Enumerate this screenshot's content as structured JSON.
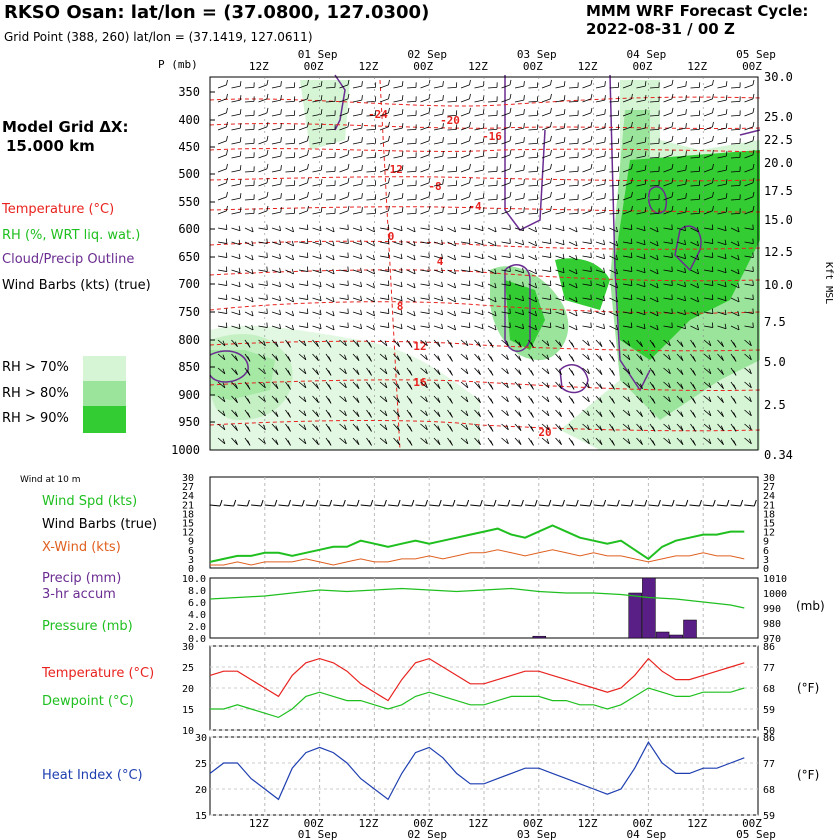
{
  "header": {
    "title": "RKSO Osan:  lat/lon = (37.0800, 127.0300)",
    "subtitle": "Grid Point (388, 260) lat/lon = (37.1419, 127.0611)",
    "cycle_line1": "MMM WRF Forecast Cycle:",
    "cycle_line2": "2022-08-31 / 00  Z"
  },
  "model": {
    "line1": "Model Grid ΔX:",
    "line2": "15.000 km"
  },
  "colors": {
    "temp": "#e8231f",
    "rh": "#1fbf1f",
    "cloud": "#6a2c91",
    "rh70": "#d5f5d5",
    "rh80": "#9be49b",
    "rh90": "#33cc33",
    "heat": "#1f3fb0"
  },
  "legend": {
    "temp": "Temperature (°C)",
    "rh": "RH (%, WRT liq. wat.)",
    "cloud": "Cloud/Precip Outline",
    "barbs": "Wind Barbs (kts) (true)",
    "rh70": "RH > 70%",
    "rh80": "RH > 80%",
    "rh90": "RH > 90%"
  },
  "time_axis": {
    "dates": [
      "01 Sep",
      "02 Sep",
      "03 Sep",
      "04 Sep",
      "05 Sep"
    ],
    "hour_labels": [
      "12Z",
      "00Z",
      "12Z",
      "00Z",
      "12Z",
      "00Z",
      "12Z",
      "00Z",
      "12Z",
      "00Z"
    ]
  },
  "upper": {
    "p_label": "P (mb)",
    "pressure_ticks": [
      "350",
      "400",
      "450",
      "500",
      "550",
      "600",
      "650",
      "700",
      "750",
      "800",
      "850",
      "900",
      "950",
      "1000"
    ],
    "height_ticks": [
      "30.0",
      "25.0",
      "22.5",
      "20.0",
      "17.5",
      "15.0",
      "12.5",
      "10.0",
      "7.5",
      "5.0",
      "2.5",
      "0.34"
    ],
    "height_label": "Kft MSL",
    "temp_labels": [
      "-24",
      "-20",
      "-16",
      "-12",
      "-8",
      "-4",
      "0",
      "4",
      "8",
      "12",
      "16",
      "20"
    ]
  },
  "surface": {
    "label": "Wind at 10 m",
    "y_ticks": [
      "30",
      "27",
      "24",
      "21",
      "18",
      "15",
      "12",
      "9",
      "6",
      "3",
      "0"
    ],
    "legend": {
      "wspd": "Wind Spd (kts)",
      "barbs": "Wind Barbs (true)",
      "xwind": "X-Wind (kts)"
    }
  },
  "precip_panel": {
    "left_ticks": [
      "10.0",
      "8.0",
      "6.0",
      "4.0",
      "2.0",
      "0.0"
    ],
    "right_ticks": [
      "1010",
      "1000",
      "990",
      "980",
      "970"
    ],
    "legend": {
      "precip": "Precip (mm)",
      "accum": "3-hr accum",
      "pressure": "Pressure (mb)"
    },
    "unit": "(mb)"
  },
  "temp_panel": {
    "left_ticks": [
      "30",
      "25",
      "20",
      "15",
      "10"
    ],
    "right_ticks": [
      "86",
      "77",
      "68",
      "59",
      "50"
    ],
    "legend": {
      "temp": "Temperature (°C)",
      "dew": "Dewpoint (°C)"
    },
    "unit": "(°F)"
  },
  "heat_panel": {
    "left_ticks": [
      "30",
      "25",
      "20",
      "15"
    ],
    "right_ticks": [
      "86",
      "77",
      "68",
      "59"
    ],
    "legend": "Heat Index (°C)",
    "unit": "(°F)"
  },
  "chart_data": [
    {
      "type": "line",
      "title": "Wind at 10 m",
      "x_hours": [
        0,
        3,
        6,
        9,
        12,
        15,
        18,
        21,
        24,
        27,
        30,
        33,
        36,
        39,
        42,
        45,
        48,
        51,
        54,
        57,
        60,
        63,
        66,
        69,
        72,
        75,
        78,
        81,
        84,
        87,
        90,
        93,
        96,
        99,
        102,
        105,
        108,
        111,
        114,
        117
      ],
      "series": [
        {
          "name": "Wind Spd (kts)",
          "values": [
            2,
            3,
            4,
            4,
            5,
            5,
            4,
            5,
            6,
            7,
            7,
            9,
            8,
            7,
            8,
            9,
            8,
            9,
            10,
            11,
            12,
            13,
            11,
            10,
            12,
            14,
            12,
            10,
            9,
            8,
            9,
            6,
            3,
            7,
            9,
            10,
            11,
            11,
            12,
            12
          ]
        },
        {
          "name": "X-Wind (kts)",
          "values": [
            1,
            1,
            2,
            1,
            2,
            2,
            2,
            3,
            2,
            1,
            2,
            3,
            2,
            2,
            3,
            3,
            4,
            3,
            4,
            5,
            5,
            6,
            5,
            4,
            5,
            6,
            5,
            4,
            5,
            4,
            4,
            3,
            2,
            3,
            4,
            4,
            5,
            4,
            4,
            3
          ]
        }
      ],
      "ylim": [
        0,
        30
      ]
    },
    {
      "type": "bar",
      "title": "Precip (mm) 3-hr accum",
      "x_hours": [
        72,
        93,
        96,
        99,
        102,
        105
      ],
      "values": [
        0.3,
        7.5,
        10.0,
        1.0,
        0.5,
        3.0
      ],
      "ylim": [
        0,
        10
      ]
    },
    {
      "type": "line",
      "title": "Pressure (mb)",
      "x_hours": [
        0,
        6,
        12,
        18,
        24,
        30,
        36,
        42,
        48,
        54,
        60,
        66,
        72,
        78,
        84,
        90,
        96,
        102,
        108,
        114,
        117
      ],
      "values": [
        996,
        997,
        998,
        1000,
        1002,
        1001,
        1002,
        1003,
        1002,
        1001,
        1002,
        1003,
        1001,
        1000,
        1000,
        999,
        997,
        996,
        994,
        992,
        990
      ],
      "ylim": [
        970,
        1010
      ]
    },
    {
      "type": "line",
      "title": "Temperature / Dewpoint",
      "x_hours": [
        0,
        3,
        6,
        9,
        12,
        15,
        18,
        21,
        24,
        27,
        30,
        33,
        36,
        39,
        42,
        45,
        48,
        51,
        54,
        57,
        60,
        63,
        66,
        69,
        72,
        75,
        78,
        81,
        84,
        87,
        90,
        93,
        96,
        99,
        102,
        105,
        108,
        111,
        114,
        117
      ],
      "series": [
        {
          "name": "Temperature (°C)",
          "values": [
            23,
            24,
            24,
            22,
            20,
            18,
            23,
            26,
            27,
            26,
            24,
            21,
            19,
            17,
            22,
            26,
            27,
            25,
            23,
            21,
            21,
            22,
            23,
            24,
            24,
            23,
            22,
            21,
            20,
            19,
            20,
            23,
            27,
            24,
            22,
            22,
            23,
            24,
            25,
            26
          ]
        },
        {
          "name": "Dewpoint (°C)",
          "values": [
            15,
            15,
            16,
            15,
            14,
            13,
            15,
            18,
            19,
            18,
            17,
            17,
            16,
            15,
            16,
            18,
            19,
            18,
            17,
            16,
            16,
            17,
            18,
            18,
            18,
            17,
            17,
            16,
            16,
            15,
            16,
            18,
            20,
            19,
            18,
            18,
            19,
            19,
            19,
            20
          ]
        }
      ],
      "ylim": [
        10,
        30
      ]
    },
    {
      "type": "line",
      "title": "Heat Index (°C)",
      "x_hours": [
        0,
        3,
        6,
        9,
        12,
        15,
        18,
        21,
        24,
        27,
        30,
        33,
        36,
        39,
        42,
        45,
        48,
        51,
        54,
        57,
        60,
        63,
        66,
        69,
        72,
        75,
        78,
        81,
        84,
        87,
        90,
        93,
        96,
        99,
        102,
        105,
        108,
        111,
        114,
        117
      ],
      "values": [
        23,
        25,
        25,
        22,
        20,
        18,
        24,
        27,
        28,
        27,
        25,
        22,
        20,
        18,
        23,
        27,
        28,
        26,
        23,
        21,
        21,
        22,
        23,
        24,
        24,
        23,
        22,
        21,
        20,
        19,
        20,
        24,
        29,
        25,
        23,
        23,
        24,
        24,
        25,
        26
      ],
      "ylim": [
        15,
        30
      ]
    }
  ]
}
